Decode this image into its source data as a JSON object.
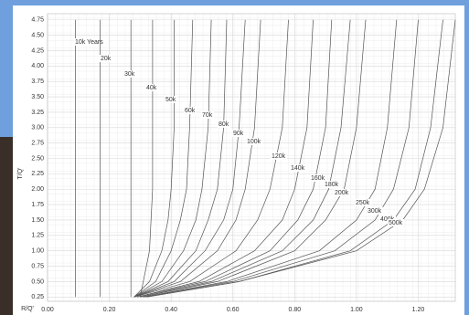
{
  "chart_data": {
    "type": "line",
    "x_label": "R/Q'",
    "y_label": "T/Q'",
    "xlim": [
      0,
      1.32
    ],
    "ylim": [
      0.18,
      4.85
    ],
    "xticks": [
      {
        "value": 0,
        "label": "0.00"
      },
      {
        "value": 0.2,
        "label": "0.20"
      },
      {
        "value": 0.4,
        "label": "0.40"
      },
      {
        "value": 0.6,
        "label": "0.60"
      },
      {
        "value": 0.8,
        "label": "0.80"
      },
      {
        "value": 1.0,
        "label": "1.00"
      },
      {
        "value": 1.2,
        "label": "1.20"
      }
    ],
    "yticks": [
      0.25,
      {
        "value": 0.5,
        "label": "0.50"
      },
      0.75,
      {
        "value": 1.0,
        "label": "1.00"
      },
      1.25,
      {
        "value": 1.5,
        "label": "1.50"
      },
      1.75,
      {
        "value": 2.0,
        "label": "2.00"
      },
      2.25,
      {
        "value": 2.5,
        "label": "2.50"
      },
      2.75,
      {
        "value": 3.0,
        "label": "3.00"
      },
      3.25,
      {
        "value": 3.5,
        "label": "3.50"
      },
      3.75,
      {
        "value": 4.0,
        "label": "4.00"
      },
      4.25,
      {
        "value": 4.5,
        "label": "4.50"
      },
      4.75
    ],
    "grid": true,
    "color": "#555555",
    "series": [
      {
        "name": "10k Years",
        "x": [
          0.09,
          0.09
        ],
        "values": [
          0.25,
          4.75
        ]
      },
      {
        "name": "20k",
        "x": [
          0.17,
          0.17
        ],
        "values": [
          0.25,
          4.75
        ]
      },
      {
        "name": "30k",
        "x": [
          0.27,
          0.27
        ],
        "values": [
          0.25,
          4.75
        ]
      },
      {
        "name": "40k",
        "x": [
          0.3,
          0.31,
          0.33,
          0.34,
          0.34
        ],
        "values": [
          0.25,
          0.5,
          1.0,
          2.0,
          4.75
        ]
      },
      {
        "name": "50k",
        "x": [
          0.28,
          0.33,
          0.37,
          0.39,
          0.4,
          0.41,
          0.41
        ],
        "values": [
          0.25,
          0.5,
          1.0,
          1.5,
          2.0,
          3.0,
          4.75
        ]
      },
      {
        "name": "60k",
        "x": [
          0.28,
          0.35,
          0.4,
          0.43,
          0.45,
          0.46,
          0.47
        ],
        "values": [
          0.25,
          0.5,
          1.0,
          1.5,
          2.0,
          3.0,
          4.75
        ]
      },
      {
        "name": "70k",
        "x": [
          0.28,
          0.37,
          0.44,
          0.48,
          0.5,
          0.52,
          0.53
        ],
        "values": [
          0.25,
          0.5,
          1.0,
          1.5,
          2.0,
          3.0,
          4.75
        ]
      },
      {
        "name": "80k",
        "x": [
          0.28,
          0.39,
          0.48,
          0.52,
          0.55,
          0.57,
          0.58
        ],
        "values": [
          0.25,
          0.5,
          1.0,
          1.5,
          2.0,
          3.0,
          4.75
        ]
      },
      {
        "name": "90k",
        "x": [
          0.28,
          0.41,
          0.51,
          0.57,
          0.6,
          0.62,
          0.64
        ],
        "values": [
          0.25,
          0.5,
          1.0,
          1.5,
          2.0,
          3.0,
          4.75
        ]
      },
      {
        "name": "100k",
        "x": [
          0.28,
          0.43,
          0.55,
          0.61,
          0.64,
          0.67,
          0.69
        ],
        "values": [
          0.25,
          0.5,
          1.0,
          1.5,
          2.0,
          3.0,
          4.75
        ]
      },
      {
        "name": "120k",
        "x": [
          0.28,
          0.46,
          0.61,
          0.68,
          0.72,
          0.76,
          0.78
        ],
        "values": [
          0.25,
          0.5,
          1.0,
          1.5,
          2.0,
          3.0,
          4.75
        ]
      },
      {
        "name": "140k",
        "x": [
          0.29,
          0.49,
          0.67,
          0.76,
          0.8,
          0.84,
          0.86
        ],
        "values": [
          0.25,
          0.5,
          1.0,
          1.5,
          2.0,
          3.0,
          4.75
        ]
      },
      {
        "name": "160k",
        "x": [
          0.29,
          0.51,
          0.72,
          0.81,
          0.86,
          0.9,
          0.92
        ],
        "values": [
          0.25,
          0.5,
          1.0,
          1.5,
          2.0,
          3.0,
          4.75
        ]
      },
      {
        "name": "180k",
        "x": [
          0.3,
          0.53,
          0.76,
          0.86,
          0.91,
          0.95,
          0.98
        ],
        "values": [
          0.25,
          0.5,
          1.0,
          1.5,
          2.0,
          3.0,
          4.75
        ]
      },
      {
        "name": "200k",
        "x": [
          0.3,
          0.55,
          0.8,
          0.9,
          0.96,
          1.0,
          1.03
        ],
        "values": [
          0.25,
          0.5,
          1.0,
          1.5,
          2.0,
          3.0,
          4.75
        ]
      },
      {
        "name": "250k",
        "x": [
          0.31,
          0.58,
          0.88,
          1.0,
          1.06,
          1.1,
          1.13
        ],
        "values": [
          0.25,
          0.5,
          1.0,
          1.5,
          2.0,
          3.0,
          4.75
        ]
      },
      {
        "name": "300k",
        "x": [
          0.31,
          0.6,
          0.93,
          1.06,
          1.12,
          1.17,
          1.2
        ],
        "values": [
          0.25,
          0.5,
          1.0,
          1.5,
          2.0,
          3.0,
          4.75
        ]
      },
      {
        "name": "400k",
        "x": [
          0.32,
          0.62,
          0.98,
          1.12,
          1.19,
          1.24,
          1.28
        ],
        "values": [
          0.25,
          0.5,
          1.0,
          1.5,
          2.0,
          3.0,
          4.75
        ]
      },
      {
        "name": "500k",
        "x": [
          0.32,
          0.62,
          1.0,
          1.15,
          1.22,
          1.28,
          1.32
        ],
        "values": [
          0.25,
          0.5,
          1.0,
          1.5,
          2.0,
          3.0,
          4.75
        ]
      }
    ]
  }
}
